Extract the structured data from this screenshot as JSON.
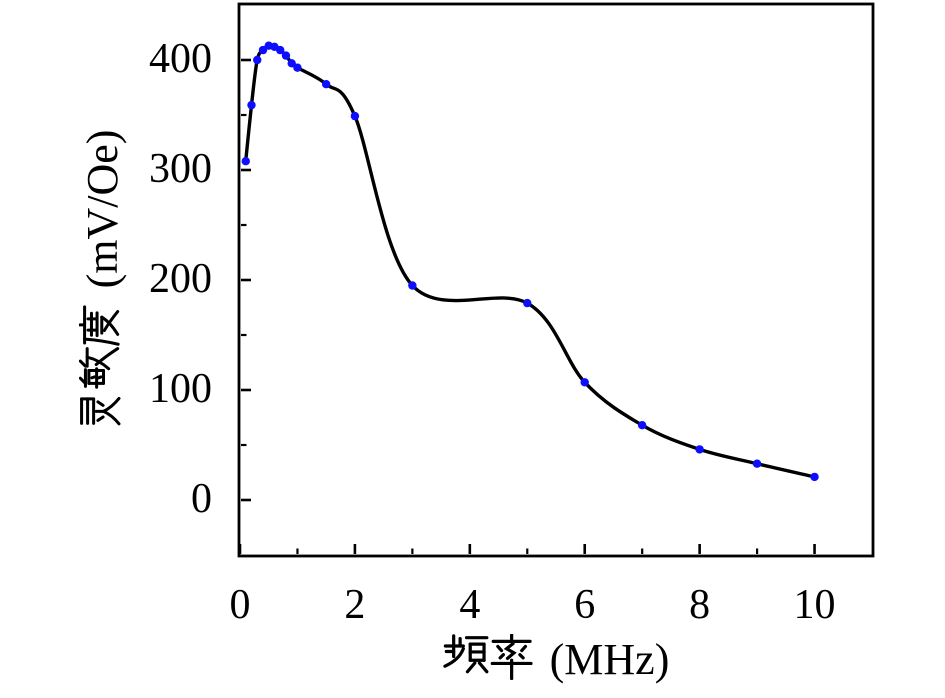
{
  "chart_data": {
    "type": "line",
    "title": "",
    "xlabel": "频率 (MHz)",
    "ylabel": "灵敏度 (mV/Oe)",
    "xlabel_cjk": "频率",
    "xlabel_latin": " (MHz)",
    "ylabel_cjk": "灵敏度",
    "ylabel_latin": " (mV/Oe)",
    "x": [
      0.1,
      0.2,
      0.3,
      0.4,
      0.5,
      0.6,
      0.7,
      0.8,
      0.9,
      1.0,
      1.5,
      2,
      3,
      5,
      6,
      7,
      8,
      9,
      10
    ],
    "y": [
      308,
      359,
      400,
      409,
      413,
      412,
      409,
      404,
      397,
      393,
      378,
      349,
      195,
      179,
      107,
      68,
      46,
      33,
      21
    ],
    "xlim": [
      0,
      11
    ],
    "ylim": [
      -50,
      450
    ],
    "xticks": [
      0,
      2,
      4,
      6,
      8,
      10
    ],
    "xtick_labels": [
      "0",
      "2",
      "4",
      "6",
      "8",
      "10"
    ],
    "yticks": [
      0,
      100,
      200,
      300,
      400
    ],
    "ytick_labels": [
      "0",
      "100",
      "200",
      "300",
      "400"
    ],
    "xminorticks": [
      1,
      3,
      5,
      7,
      9
    ],
    "yminorticks": [
      50,
      150,
      250,
      350
    ],
    "grid": false,
    "legend": "none",
    "line_color": "#000000",
    "marker_color": "#0d0dff",
    "axis_color": "#000000"
  }
}
